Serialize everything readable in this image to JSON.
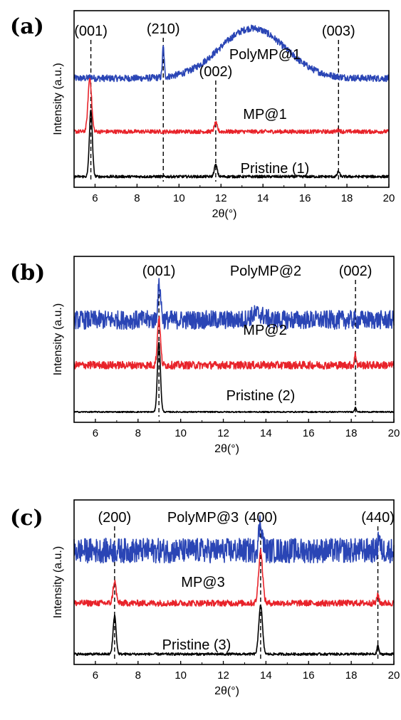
{
  "chart_data": [
    {
      "id": "a",
      "type": "line",
      "panel_label": "(a)",
      "xlabel": "2θ(°)",
      "ylabel": "Intensity (a.u.)",
      "xlim": [
        5,
        20
      ],
      "xticks": [
        6,
        8,
        10,
        12,
        14,
        16,
        18,
        20
      ],
      "noise": [
        0.02,
        0.012,
        0.008
      ],
      "series": [
        {
          "name": "PolyMP@1",
          "color": "#2a45b5",
          "baseline": 0.62,
          "peaks": [
            [
              9.25,
              0.18,
              0.06
            ],
            [
              5.8,
              0.01,
              0.1
            ]
          ],
          "hump": [
            13.5,
            0.3,
            2.2
          ]
        },
        {
          "name": "MP@1",
          "color": "#e8232a",
          "baseline": 0.3,
          "peaks": [
            [
              5.75,
              0.32,
              0.12
            ],
            [
              11.75,
              0.05,
              0.1
            ],
            [
              17.6,
              0.01,
              0.1
            ]
          ]
        },
        {
          "name": "Pristine (1)",
          "color": "#000000",
          "baseline": 0.03,
          "peaks": [
            [
              5.8,
              0.4,
              0.1
            ],
            [
              11.75,
              0.07,
              0.1
            ],
            [
              17.6,
              0.03,
              0.08
            ]
          ]
        }
      ],
      "reflections": [
        {
          "label": "(001)",
          "x": 5.8
        },
        {
          "label": "(210)",
          "x": 9.25
        },
        {
          "label": "(002)",
          "x": 11.75
        },
        {
          "label": "(003)",
          "x": 17.6
        }
      ]
    },
    {
      "id": "b",
      "type": "line",
      "panel_label": "(b)",
      "xlabel": "2θ(°)",
      "ylabel": "Intensity (a.u.)",
      "xlim": [
        5,
        20
      ],
      "xticks": [
        6,
        8,
        10,
        12,
        14,
        16,
        18,
        20
      ],
      "noise": [
        0.06,
        0.025,
        0.004
      ],
      "series": [
        {
          "name": "PolyMP@2",
          "color": "#2a45b5",
          "baseline": 0.62,
          "peaks": [
            [
              9.0,
              0.22,
              0.1
            ],
            [
              13.6,
              0.04,
              0.4
            ]
          ]
        },
        {
          "name": "MP@2",
          "color": "#e8232a",
          "baseline": 0.33,
          "peaks": [
            [
              8.98,
              0.3,
              0.1
            ],
            [
              18.2,
              0.07,
              0.06
            ]
          ]
        },
        {
          "name": "Pristine (2)",
          "color": "#000000",
          "baseline": 0.03,
          "peaks": [
            [
              8.98,
              0.45,
              0.1
            ],
            [
              18.2,
              0.03,
              0.06
            ]
          ]
        }
      ],
      "reflections": [
        {
          "label": "(001)",
          "x": 8.98
        },
        {
          "label": "(002)",
          "x": 18.2
        }
      ]
    },
    {
      "id": "c",
      "type": "line",
      "panel_label": "(c)",
      "xlabel": "2θ(°)",
      "ylabel": "Intensity (a.u.)",
      "xlim": [
        5,
        20
      ],
      "xticks": [
        6,
        8,
        10,
        12,
        14,
        16,
        18,
        20
      ],
      "noise": [
        0.08,
        0.02,
        0.008
      ],
      "series": [
        {
          "name": "PolyMP@3",
          "color": "#2a45b5",
          "baseline": 0.7,
          "peaks": [
            [
              13.75,
              0.18,
              0.12
            ],
            [
              19.3,
              0.1,
              0.06
            ]
          ]
        },
        {
          "name": "MP@3",
          "color": "#e8232a",
          "baseline": 0.36,
          "peaks": [
            [
              6.9,
              0.14,
              0.1
            ],
            [
              13.75,
              0.34,
              0.13
            ],
            [
              19.25,
              0.06,
              0.06
            ]
          ]
        },
        {
          "name": "Pristine (3)",
          "color": "#000000",
          "baseline": 0.03,
          "peaks": [
            [
              6.9,
              0.25,
              0.1
            ],
            [
              13.75,
              0.32,
              0.12
            ],
            [
              19.25,
              0.06,
              0.06
            ]
          ]
        }
      ],
      "reflections": [
        {
          "label": "(200)",
          "x": 6.9
        },
        {
          "label": "(400)",
          "x": 13.75
        },
        {
          "label": "(440)",
          "x": 19.25
        }
      ]
    }
  ]
}
